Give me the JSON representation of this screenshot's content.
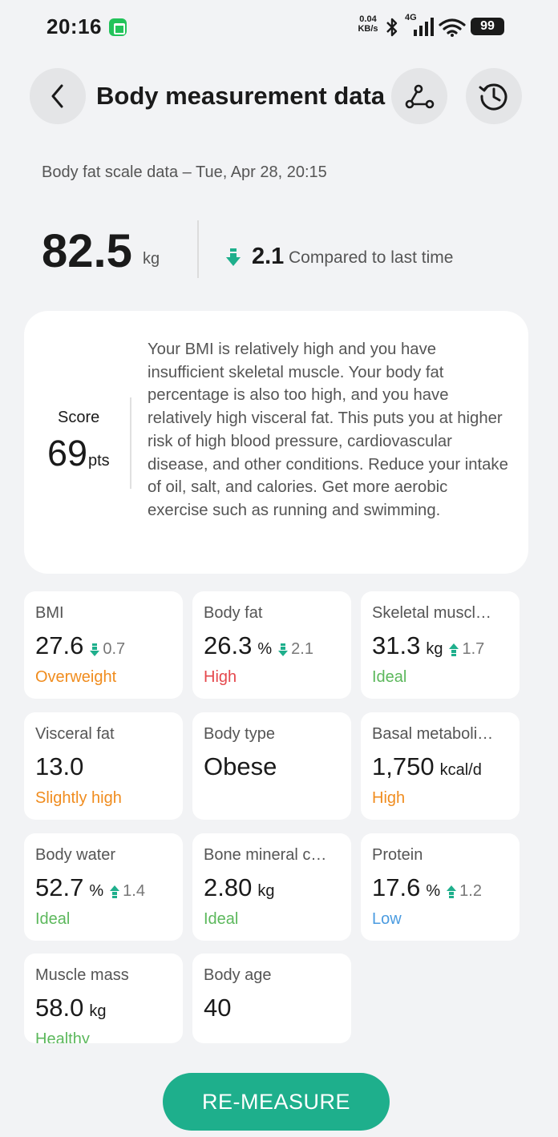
{
  "status_bar": {
    "time": "20:16",
    "net_speed_value": "0.04",
    "net_speed_unit": "KB/s",
    "network_type": "4G",
    "battery": "99"
  },
  "header": {
    "title": "Body measurement data"
  },
  "subtitle": "Body fat scale data – Tue, Apr 28, 20:15",
  "weight": {
    "value": "82.5",
    "unit": "kg",
    "delta": "2.1",
    "delta_label": "Compared to last time",
    "delta_direction": "down"
  },
  "score": {
    "label": "Score",
    "value": "69",
    "unit": "pts",
    "description": "Your BMI is relatively high and you have insufficient skeletal muscle. Your body fat percentage is also too high, and you have relatively high visceral fat. This puts you at higher risk of high blood pressure, cardiovascular disease, and other conditions. Reduce your intake of oil, salt, and calories. Get more aerobic exercise such as running and swimming."
  },
  "colors": {
    "accent": "#1eaf8c",
    "orange": "#f08c1e",
    "red": "#e5484d",
    "green": "#5cb85c",
    "blue": "#4a9be0"
  },
  "metrics": [
    {
      "title": "BMI",
      "value": "27.6",
      "unit": "",
      "delta": "0.7",
      "delta_direction": "down",
      "status": "Overweight",
      "status_color": "#f08c1e"
    },
    {
      "title": "Body fat",
      "value": "26.3",
      "unit": "%",
      "delta": "2.1",
      "delta_direction": "down",
      "status": "High",
      "status_color": "#e5484d"
    },
    {
      "title": "Skeletal muscl…",
      "value": "31.3",
      "unit": "kg",
      "delta": "1.7",
      "delta_direction": "up",
      "status": "Ideal",
      "status_color": "#5cb85c"
    },
    {
      "title": "Visceral fat",
      "value": "13.0",
      "unit": "",
      "delta": "",
      "delta_direction": "",
      "status": "Slightly high",
      "status_color": "#f08c1e"
    },
    {
      "title": "Body type",
      "value": "Obese",
      "unit": "",
      "delta": "",
      "delta_direction": "",
      "status": "",
      "status_color": ""
    },
    {
      "title": "Basal metaboli…",
      "value": "1,750",
      "unit": "kcal/d",
      "delta": "",
      "delta_direction": "",
      "status": "High",
      "status_color": "#f08c1e"
    },
    {
      "title": "Body water",
      "value": "52.7",
      "unit": "%",
      "delta": "1.4",
      "delta_direction": "up",
      "status": "Ideal",
      "status_color": "#5cb85c"
    },
    {
      "title": "Bone mineral c…",
      "value": "2.80",
      "unit": "kg",
      "delta": "",
      "delta_direction": "",
      "status": "Ideal",
      "status_color": "#5cb85c"
    },
    {
      "title": "Protein",
      "value": "17.6",
      "unit": "%",
      "delta": "1.2",
      "delta_direction": "up",
      "status": "Low",
      "status_color": "#4a9be0"
    },
    {
      "title": "Muscle mass",
      "value": "58.0",
      "unit": "kg",
      "delta": "",
      "delta_direction": "",
      "status": "Healthy",
      "status_color": "#5cb85c"
    },
    {
      "title": "Body age",
      "value": "40",
      "unit": "",
      "delta": "",
      "delta_direction": "",
      "status": "",
      "status_color": ""
    }
  ],
  "button": {
    "label": "RE-MEASURE"
  }
}
